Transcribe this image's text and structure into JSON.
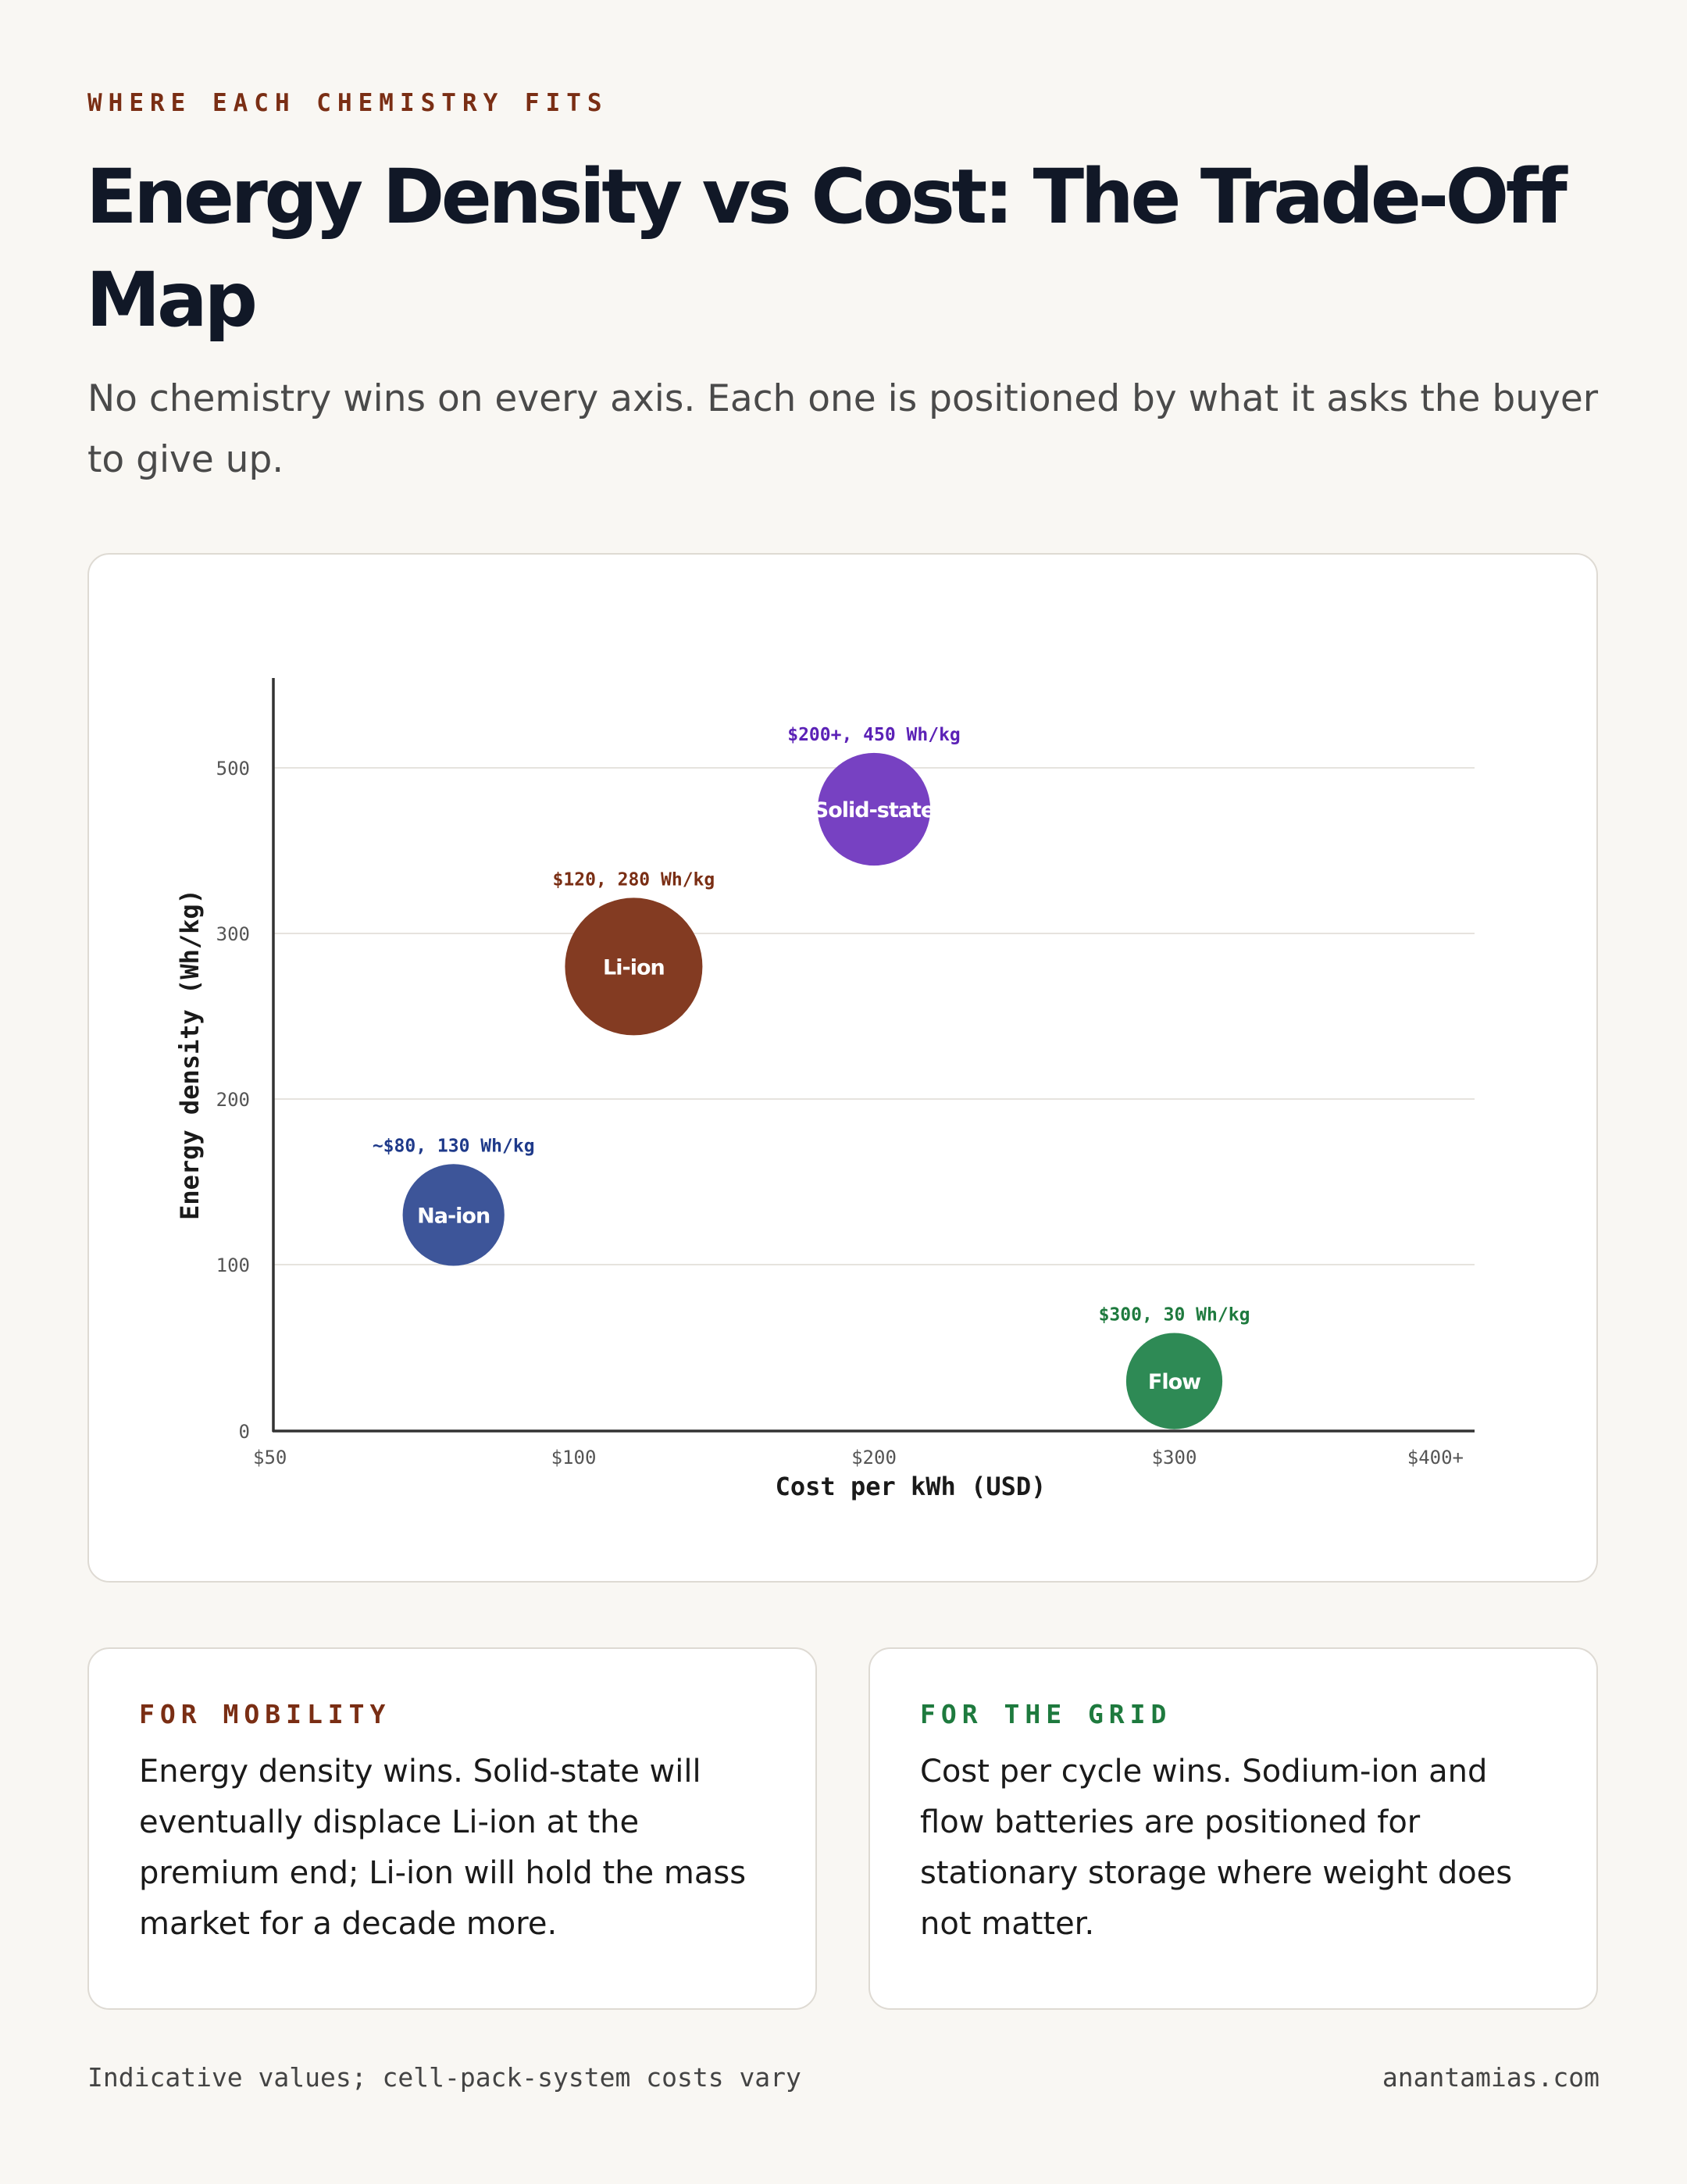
{
  "header": {
    "eyebrow": "WHERE EACH CHEMISTRY FITS",
    "title": "Energy Density vs Cost: The Trade-Off Map",
    "subtitle": "No chemistry wins on every axis. Each one is positioned by what it asks the buyer to give up."
  },
  "chart_data": {
    "type": "scatter",
    "variant": "bubble",
    "xlabel": "Cost per kWh (USD)",
    "ylabel": "Energy density (Wh/kg)",
    "x_ticks": [
      {
        "value": 50,
        "label": "$50"
      },
      {
        "value": 100,
        "label": "$100"
      },
      {
        "value": 200,
        "label": "$200"
      },
      {
        "value": 300,
        "label": "$300"
      },
      {
        "value": 400,
        "label": "$400+"
      }
    ],
    "y_ticks": [
      0,
      100,
      200,
      300,
      500
    ],
    "grid": true,
    "points": [
      {
        "name": "Na-ion",
        "x": 80,
        "y": 130,
        "annotation": "~$80, 130 Wh/kg",
        "color": "#3d5599",
        "label_color": "#1f3a8a",
        "relative_size": 0.74
      },
      {
        "name": "Li-ion",
        "x": 120,
        "y": 280,
        "annotation": "$120, 280 Wh/kg",
        "color": "#833b22",
        "label_color": "#7a2e14",
        "relative_size": 1.0
      },
      {
        "name": "Solid-state",
        "x": 200,
        "y": 450,
        "annotation": "$200+, 450 Wh/kg",
        "color": "#7741c2",
        "label_color": "#5b21b6",
        "relative_size": 0.82
      },
      {
        "name": "Flow",
        "x": 300,
        "y": 30,
        "annotation": "$300, 30 Wh/kg",
        "color": "#2e8a55",
        "label_color": "#1e7a3e",
        "relative_size": 0.7
      }
    ]
  },
  "notes": {
    "mobility": {
      "label": "FOR MOBILITY",
      "body": "Energy density wins. Solid-state will eventually displace Li-ion at the premium end; Li-ion will hold the mass market for a decade more."
    },
    "grid": {
      "label": "FOR THE GRID",
      "body": "Cost per cycle wins. Sodium-ion and flow batteries are positioned for stationary storage where weight does not matter."
    }
  },
  "footer": {
    "note": "Indicative values; cell-pack-system costs vary",
    "site": "anantamias.com"
  }
}
